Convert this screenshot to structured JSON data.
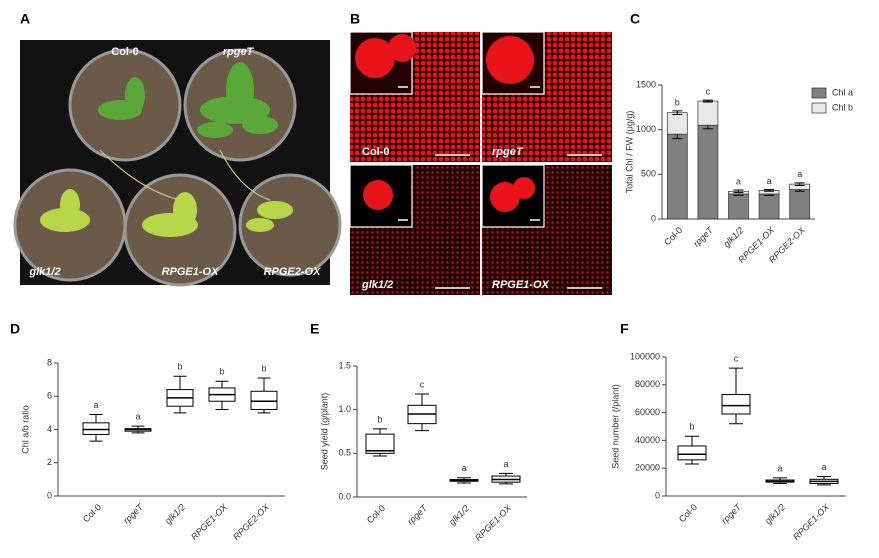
{
  "panel_letters": [
    "A",
    "B",
    "C",
    "D",
    "E",
    "F"
  ],
  "photo_a": {
    "labels": [
      "Col-0",
      "rpgeT",
      "glk1/2",
      "RPGE1-OX",
      "RPGE2-OX"
    ]
  },
  "photo_b": {
    "labels": [
      "Col-0",
      "rpgeT",
      "glk1/2",
      "RPGE1-OX"
    ]
  },
  "chart_data": [
    {
      "type": "bar",
      "stacked": true,
      "y_label": "Total Chl / FW (μg/g)",
      "categories": [
        "Col-0",
        "rpgeT",
        "glk1/2",
        "RPGE1-OX",
        "RPGE2-OX"
      ],
      "series": [
        {
          "name": "Chl a",
          "color": "#808080",
          "values": [
            950,
            1050,
            280,
            280,
            330
          ],
          "errors": [
            50,
            40,
            15,
            15,
            20
          ]
        },
        {
          "name": "Chl b",
          "color": "#e8e8e8",
          "values": [
            240,
            270,
            30,
            40,
            60
          ],
          "errors": [
            20,
            10,
            15,
            10,
            15
          ]
        }
      ],
      "annotations": [
        "b",
        "c",
        "a",
        "a",
        "a"
      ],
      "ylim": [
        0,
        1500
      ],
      "yticks": [
        0,
        500,
        1000,
        1500
      ],
      "legend": "upper right"
    },
    {
      "type": "box",
      "y_label": "Chl a/b ratio",
      "categories": [
        "Col-0",
        "rpgeT",
        "glk1/2",
        "RPGE1-OX",
        "RPGE2-OX"
      ],
      "min": [
        3.3,
        3.8,
        5.0,
        5.2,
        5.0
      ],
      "q1": [
        3.7,
        3.9,
        5.4,
        5.7,
        5.2
      ],
      "median": [
        4.0,
        4.0,
        5.9,
        6.1,
        5.7
      ],
      "q3": [
        4.4,
        4.05,
        6.4,
        6.5,
        6.3
      ],
      "max": [
        4.9,
        4.2,
        7.2,
        6.9,
        7.1
      ],
      "annotations": [
        "a",
        "a",
        "b",
        "b",
        "b"
      ],
      "ylim": [
        0,
        8
      ],
      "yticks": [
        0,
        2,
        4,
        6,
        8
      ]
    },
    {
      "type": "box",
      "y_label": "Seed yield (g/plant)",
      "categories": [
        "Col-0",
        "rpgeT",
        "glk1/2",
        "RPGE1-OX"
      ],
      "min": [
        0.47,
        0.76,
        0.16,
        0.15
      ],
      "q1": [
        0.5,
        0.84,
        0.18,
        0.17
      ],
      "median": [
        0.53,
        0.95,
        0.19,
        0.2
      ],
      "q3": [
        0.72,
        1.05,
        0.2,
        0.24
      ],
      "max": [
        0.78,
        1.18,
        0.22,
        0.27
      ],
      "annotations": [
        "b",
        "c",
        "a",
        "a"
      ],
      "ylim": [
        0,
        1.5
      ],
      "yticks": [
        {
          "value": 0,
          "label": "0.0"
        },
        0.5,
        {
          "value": 1,
          "label": "1.0"
        },
        1.5
      ]
    },
    {
      "type": "box",
      "y_label": "Seed number (/plant)",
      "categories": [
        "Col-0",
        "rpgeT",
        "glk1/2",
        "RPGE1-OX"
      ],
      "min": [
        23000,
        52000,
        9000,
        8000
      ],
      "q1": [
        26000,
        59000,
        10000,
        9000
      ],
      "median": [
        30000,
        65000,
        10500,
        10500
      ],
      "q3": [
        36000,
        73000,
        11500,
        12000
      ],
      "max": [
        43000,
        92000,
        13000,
        14000
      ],
      "annotations": [
        "b",
        "c",
        "a",
        "a"
      ],
      "ylim": [
        0,
        100000
      ],
      "yticks": [
        0,
        20000,
        40000,
        60000,
        80000,
        100000
      ]
    }
  ]
}
